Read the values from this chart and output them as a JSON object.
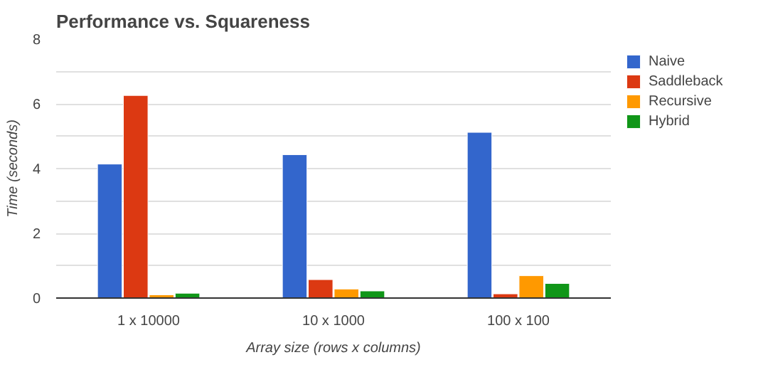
{
  "chart_data": {
    "type": "bar",
    "title": "Performance vs. Squareness",
    "xlabel": "Array size (rows x columns)",
    "ylabel": "Time (seconds)",
    "categories": [
      "1 x 10000",
      "10 x 1000",
      "100 x 100"
    ],
    "series": [
      {
        "name": "Naive",
        "color": "#3366cc",
        "values": [
          4.14,
          4.43,
          5.12
        ]
      },
      {
        "name": "Saddleback",
        "color": "#dc3912",
        "values": [
          6.26,
          0.57,
          0.13
        ]
      },
      {
        "name": "Recursive",
        "color": "#ff9900",
        "values": [
          0.1,
          0.28,
          0.69
        ]
      },
      {
        "name": "Hybrid",
        "color": "#109618",
        "values": [
          0.15,
          0.22,
          0.45
        ]
      }
    ],
    "ylim": [
      0,
      8
    ],
    "yticks": [
      0,
      {
        "value": 1,
        "label": null
      },
      2,
      {
        "value": 3,
        "label": null
      },
      4,
      {
        "value": 5,
        "label": null
      },
      6,
      {
        "value": 7,
        "label": null
      },
      8
    ],
    "grid": "y",
    "legend": "right"
  }
}
